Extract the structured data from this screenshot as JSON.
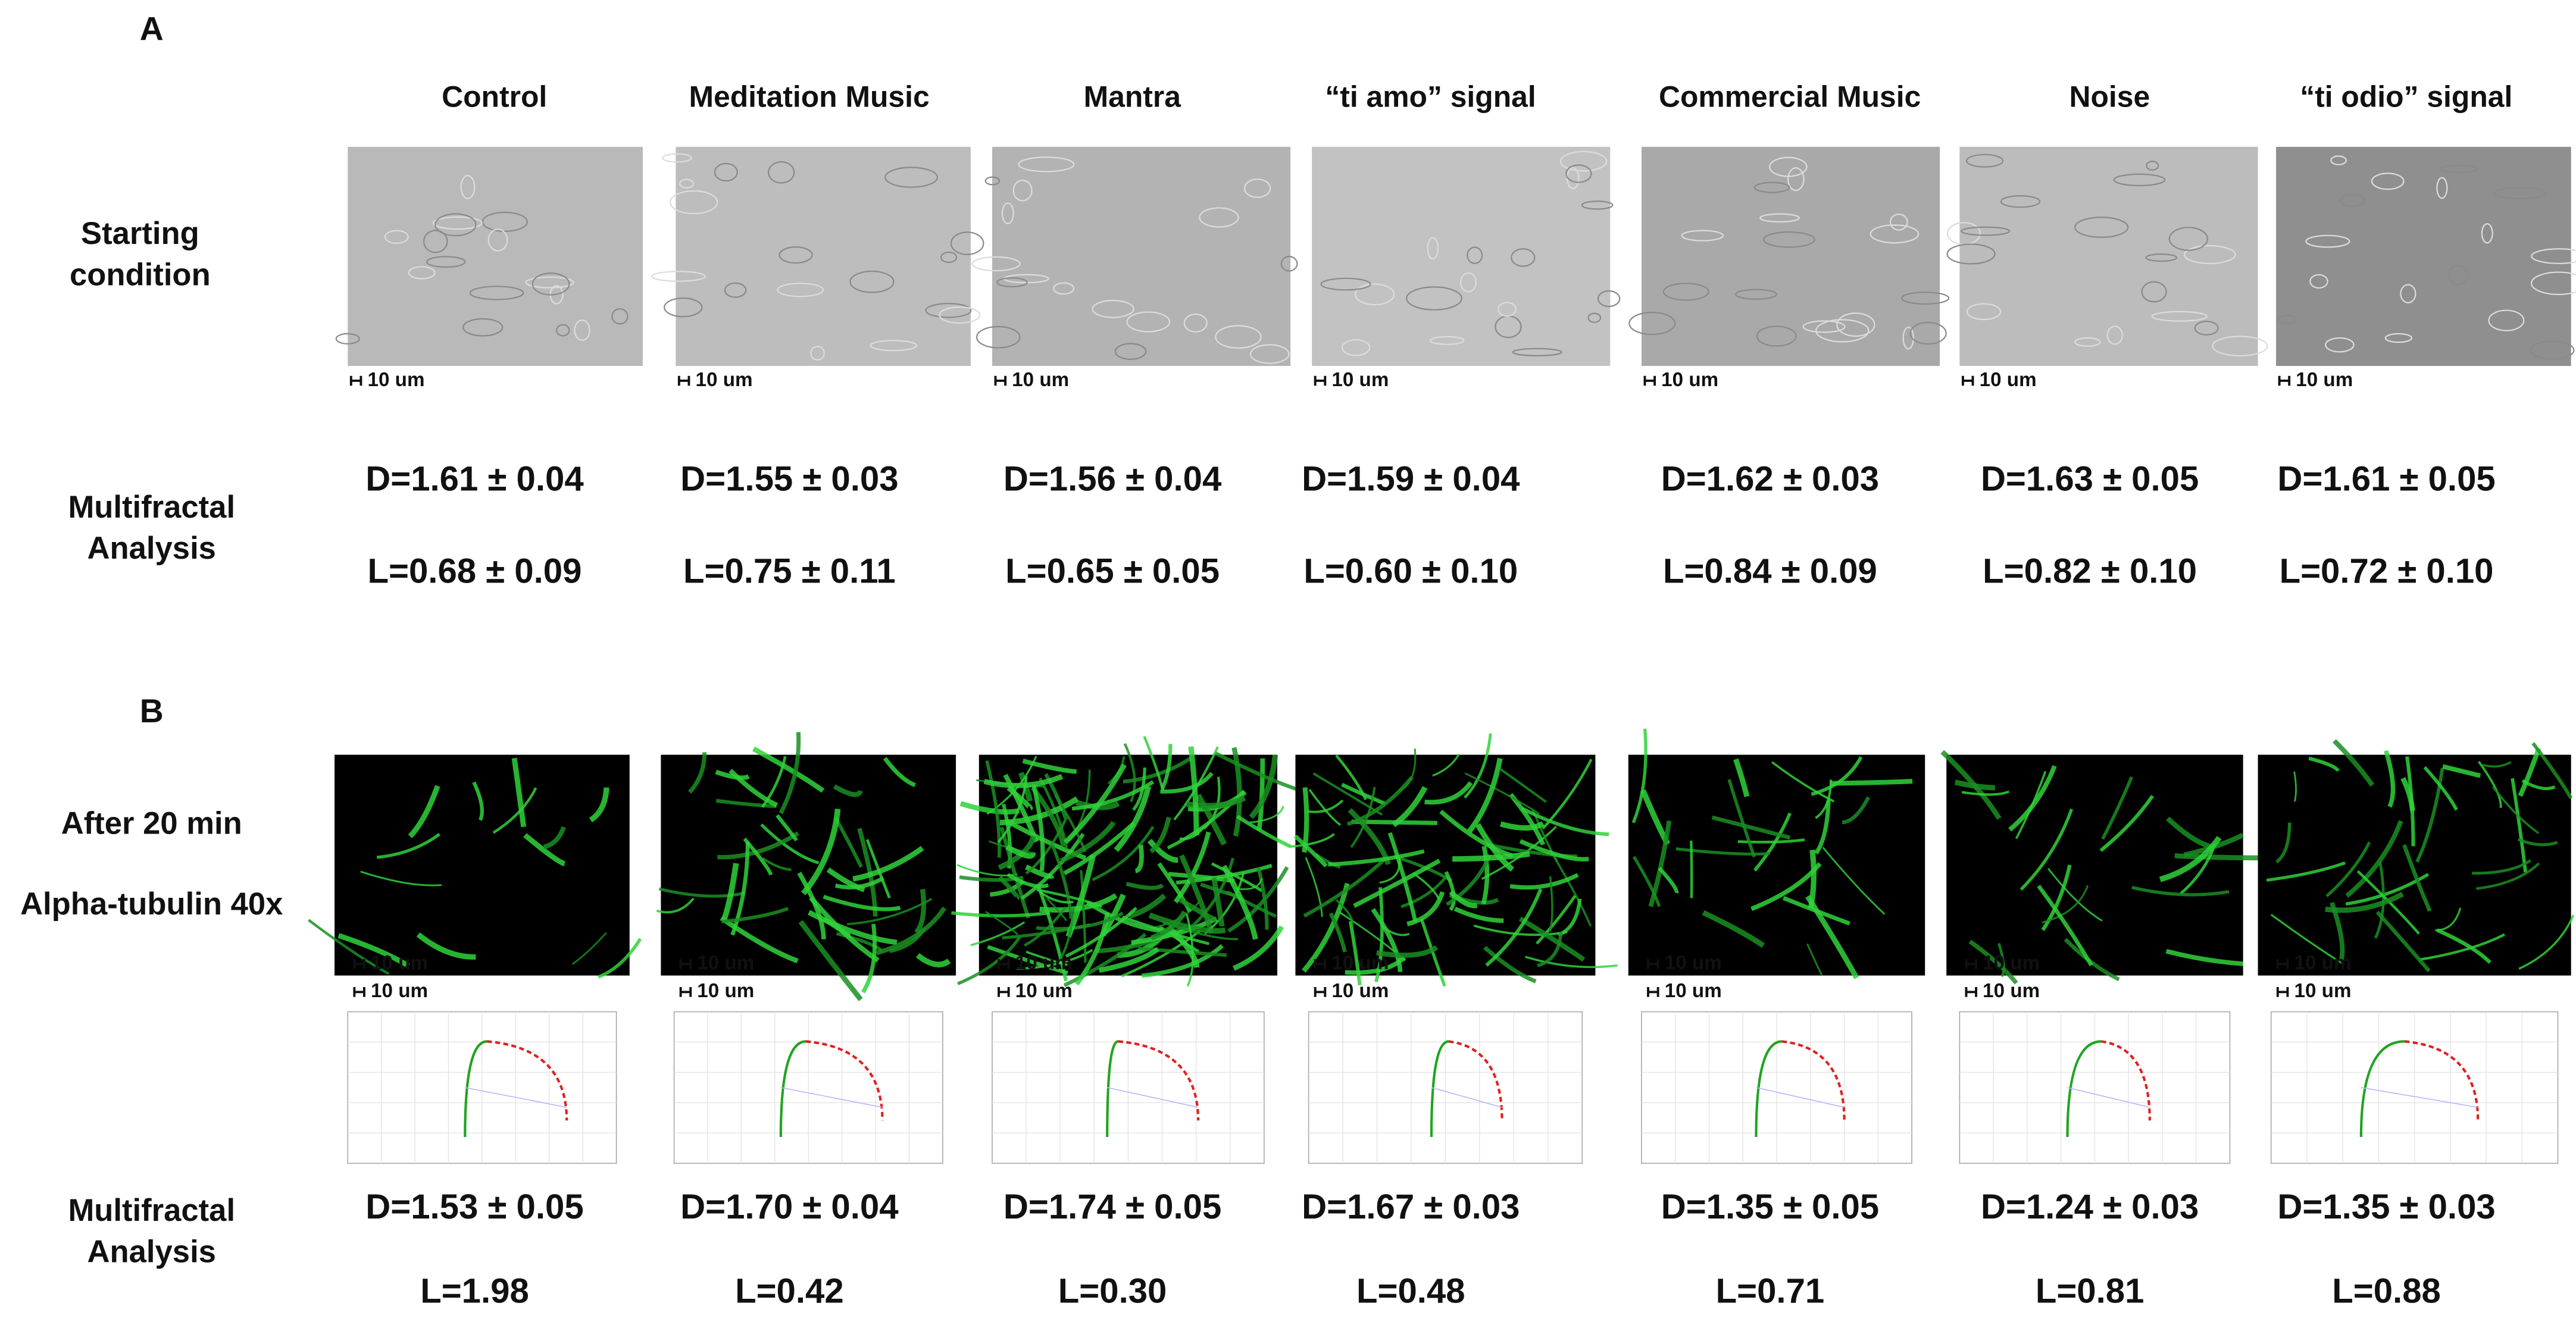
{
  "panel_a": {
    "label": "A",
    "columns": [
      "Control",
      "Meditation Music",
      "Mantra",
      "“ti amo” signal",
      "Commercial Music",
      "Noise",
      "“ti odio” signal"
    ],
    "image_row_label": [
      "Starting",
      "condition"
    ],
    "analysis_row_label": [
      "Multifractal",
      "Analysis"
    ],
    "scale_bar": "10 um",
    "d_values": [
      "D=1.61 ± 0.04",
      "D=1.55 ± 0.03",
      "D=1.56 ± 0.04",
      "D=1.59 ± 0.04",
      "D=1.62 ± 0.03",
      "D=1.63 ± 0.05",
      "D=1.61 ± 0.05"
    ],
    "l_values": [
      "L=0.68 ± 0.09",
      "L=0.75 ± 0.11",
      "L=0.65 ± 0.05",
      "L=0.60 ± 0.10",
      "L=0.84 ± 0.09",
      "L=0.82 ± 0.10",
      "L=0.72 ± 0.10"
    ]
  },
  "panel_b": {
    "label": "B",
    "image_row_label": [
      "After 20 min",
      "Alpha-tubulin 40x"
    ],
    "analysis_row_label": [
      "Multifractal",
      "Analysis"
    ],
    "scale_bar": "10 um",
    "d_values": [
      "D=1.53 ± 0.05",
      "D=1.70 ± 0.04",
      "D=1.74 ± 0.05",
      "D=1.67 ± 0.03",
      "D=1.35 ± 0.05",
      "D=1.24 ± 0.03",
      "D=1.35 ± 0.03"
    ],
    "l_values": [
      "L=1.98",
      "L=0.42",
      "L=0.30",
      "L=0.48",
      "L=0.71",
      "L=0.81",
      "L=0.88"
    ]
  }
}
